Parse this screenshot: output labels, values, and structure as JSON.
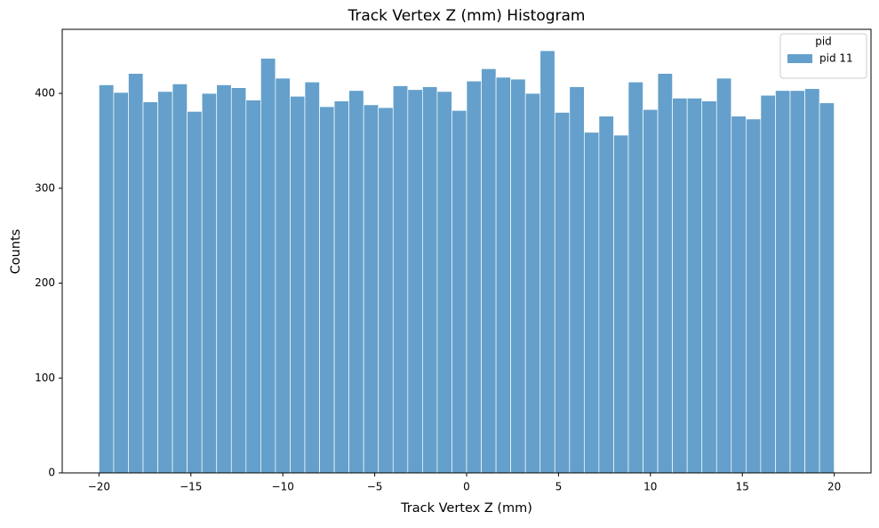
{
  "chart_data": {
    "type": "histogram",
    "title": "Track Vertex Z (mm) Histogram",
    "x_label": "Track Vertex Z (mm)",
    "y_label": "Counts",
    "bins": [
      -20,
      -19.2,
      -18.4,
      -17.6,
      -16.8,
      -16,
      -15.2,
      -14.4,
      -13.6,
      -12.8,
      -12,
      -11.2,
      -10.4,
      -9.6,
      -8.8,
      -8,
      -7.2,
      -6.4,
      -5.6,
      -4.8,
      -4,
      -3.2,
      -2.4,
      -1.6,
      -0.8,
      0,
      0.8,
      1.6,
      2.4,
      3.2,
      4,
      4.8,
      5.6,
      6.4,
      7.2,
      8,
      8.8,
      9.6,
      10.4,
      11.2,
      12,
      12.8,
      13.6,
      14.4,
      15.2,
      16,
      16.8,
      17.6,
      18.4,
      19.2,
      20
    ],
    "series": [
      {
        "name": "pid 11",
        "color": "#64a0cb",
        "values": [
          409,
          401,
          421,
          391,
          402,
          410,
          381,
          400,
          409,
          406,
          393,
          437,
          416,
          397,
          412,
          386,
          392,
          403,
          388,
          385,
          408,
          404,
          407,
          402,
          382,
          413,
          426,
          417,
          415,
          400,
          445,
          380,
          407,
          359,
          376,
          356,
          412,
          383,
          421,
          395,
          395,
          392,
          416,
          376,
          373,
          398,
          403,
          403,
          405,
          390
        ]
      }
    ],
    "legend_title": "pid",
    "legend": "upper right",
    "xlim": [
      -22,
      22
    ],
    "xticks": [
      {
        "value": -20,
        "label": "−20"
      },
      {
        "value": -15,
        "label": "−15"
      },
      {
        "value": -10,
        "label": "−10"
      },
      {
        "value": -5,
        "label": "−5"
      },
      0,
      5,
      10,
      15,
      20
    ],
    "ylim": [
      0,
      467.5
    ],
    "yticks": [
      0,
      100,
      200,
      300,
      400
    ]
  }
}
